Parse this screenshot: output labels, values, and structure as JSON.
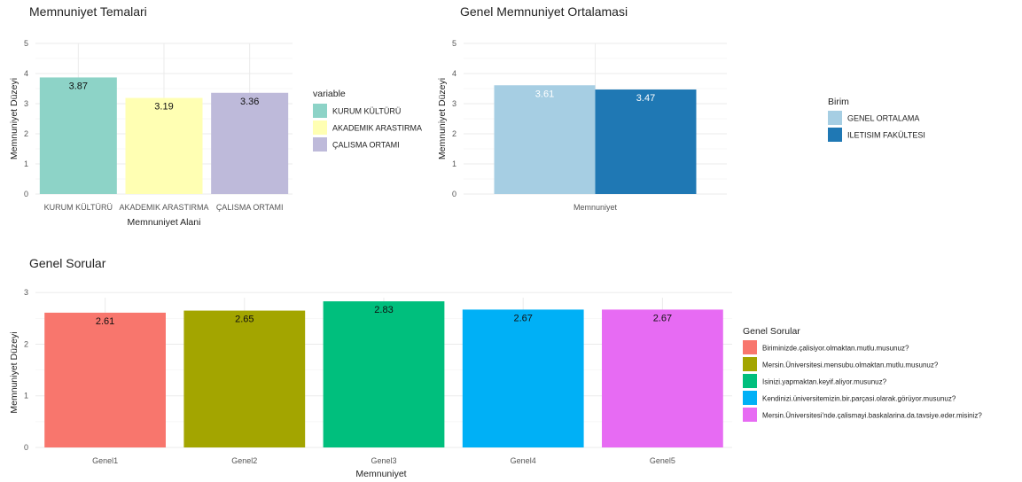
{
  "chart_data": [
    {
      "type": "bar",
      "title": "Memnuniyet Temalari",
      "xlabel": "Memnuniyet Alani",
      "ylabel": "Memnuniyet Düzeyi",
      "ylim": [
        0,
        5
      ],
      "yticks": [
        "0",
        "1",
        "2",
        "3",
        "4",
        "5"
      ],
      "categories": [
        "KURUM KÜLTÜRÜ",
        "AKADEMIK ARASTIRMA",
        "ÇALISMA ORTAMI"
      ],
      "values": [
        3.87,
        3.19,
        3.36
      ],
      "value_labels": [
        "3.87",
        "3.19",
        "3.36"
      ],
      "colors": [
        "#8dd3c7",
        "#ffffb3",
        "#bebada"
      ],
      "grid": true,
      "legend": {
        "title": "variable",
        "position": "right",
        "items": [
          "KURUM KÜLTÜRÜ",
          "AKADEMIK ARASTIRMA",
          "ÇALISMA ORTAMI"
        ]
      }
    },
    {
      "type": "bar",
      "title": "Genel Memnuniyet Ortalamasi",
      "xlabel": "",
      "ylabel": "Memnuniyet Düzeyi",
      "ylim": [
        0,
        5
      ],
      "yticks": [
        "0",
        "1",
        "2",
        "3",
        "4",
        "5"
      ],
      "categories": [
        "Memnuniyet"
      ],
      "series": [
        {
          "name": "GENEL ORTALAMA",
          "values": [
            3.61
          ],
          "label": "3.61",
          "color": "#a6cee3"
        },
        {
          "name": "ILETISIM FAKÜLTESI",
          "values": [
            3.47
          ],
          "label": "3.47",
          "color": "#1f78b4"
        }
      ],
      "grid": true,
      "legend": {
        "title": "Birim",
        "position": "right",
        "items": [
          "GENEL ORTALAMA",
          "ILETISIM FAKÜLTESI"
        ]
      }
    },
    {
      "type": "bar",
      "title": "Genel Sorular",
      "xlabel": "Memnuniyet",
      "ylabel": "Memnuniyet Düzeyi",
      "ylim": [
        0,
        2.9
      ],
      "yticks": [
        "0",
        "1",
        "2",
        "3"
      ],
      "categories": [
        "Genel1",
        "Genel2",
        "Genel3",
        "Genel4",
        "Genel5"
      ],
      "values": [
        2.61,
        2.65,
        2.83,
        2.67,
        2.67
      ],
      "value_labels": [
        "2.61",
        "2.65",
        "2.83",
        "2.67",
        "2.67"
      ],
      "colors": [
        "#f8766d",
        "#a3a500",
        "#00bf7d",
        "#00b0f6",
        "#e76bf3"
      ],
      "grid": true,
      "legend": {
        "title": "Genel Sorular",
        "position": "right",
        "items": [
          "Biriminizde.çalisiyor.olmaktan.mutlu.musunuz?",
          "Mersin.Üniversitesi.mensubu.olmaktan.mutlu.musunuz?",
          "Isinizi.yapmaktan.keyif.aliyor.musunuz?",
          "Kendinizi.üniversitemizin.bir.parçasi.olarak.görüyor.musunuz?",
          "Mersin.Üniversitesi'nde.çalismayi.baskalarina.da.tavsiye.eder.misiniz?"
        ]
      }
    }
  ]
}
